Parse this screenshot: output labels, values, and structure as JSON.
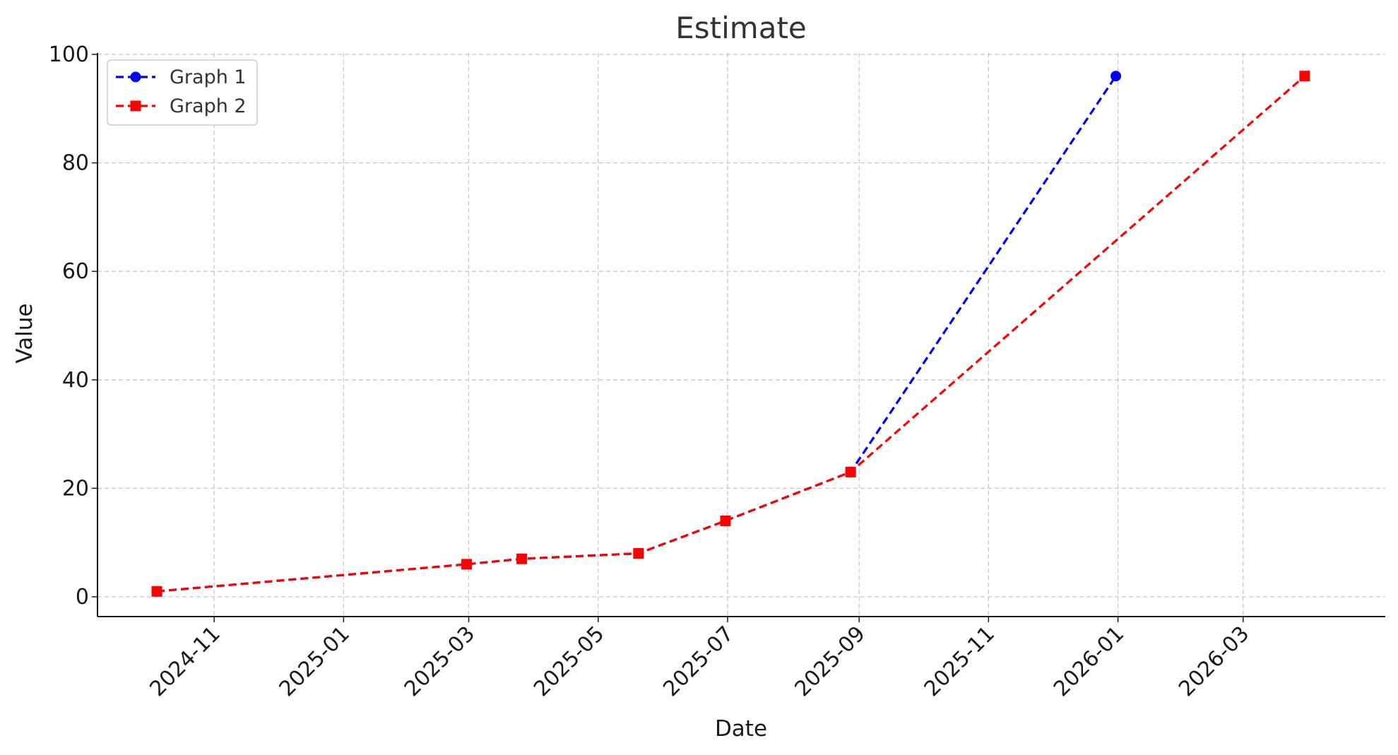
{
  "chart_data": {
    "type": "line",
    "title": "Estimate",
    "xlabel": "Date",
    "ylabel": "Value",
    "ylim": [
      0,
      100
    ],
    "xlim": [
      "2024-09-07",
      "2026-05-07"
    ],
    "grid": true,
    "legend_position": "top-left",
    "x_ticks": [
      "2024-11",
      "2025-01",
      "2025-03",
      "2025-05",
      "2025-07",
      "2025-09",
      "2025-11",
      "2026-01",
      "2026-03"
    ],
    "y_ticks": [
      "0",
      "20",
      "40",
      "60",
      "80",
      "100"
    ],
    "series": [
      {
        "name": "Graph 1",
        "color": "#0000ff",
        "marker": "circle",
        "line_style": "dashed",
        "x": [
          "2024-10-05",
          "2025-02-28",
          "2025-03-26",
          "2025-05-20",
          "2025-06-30",
          "2025-08-28",
          "2025-12-31"
        ],
        "y": [
          1,
          6,
          7,
          8,
          14,
          23,
          96
        ]
      },
      {
        "name": "Graph 2",
        "color": "#ff0000",
        "marker": "square",
        "line_style": "dashed",
        "x": [
          "2024-10-05",
          "2025-02-28",
          "2025-03-26",
          "2025-05-20",
          "2025-06-30",
          "2025-08-28",
          "2026-03-30"
        ],
        "y": [
          1,
          6,
          7,
          8,
          14,
          23,
          96
        ]
      }
    ]
  }
}
